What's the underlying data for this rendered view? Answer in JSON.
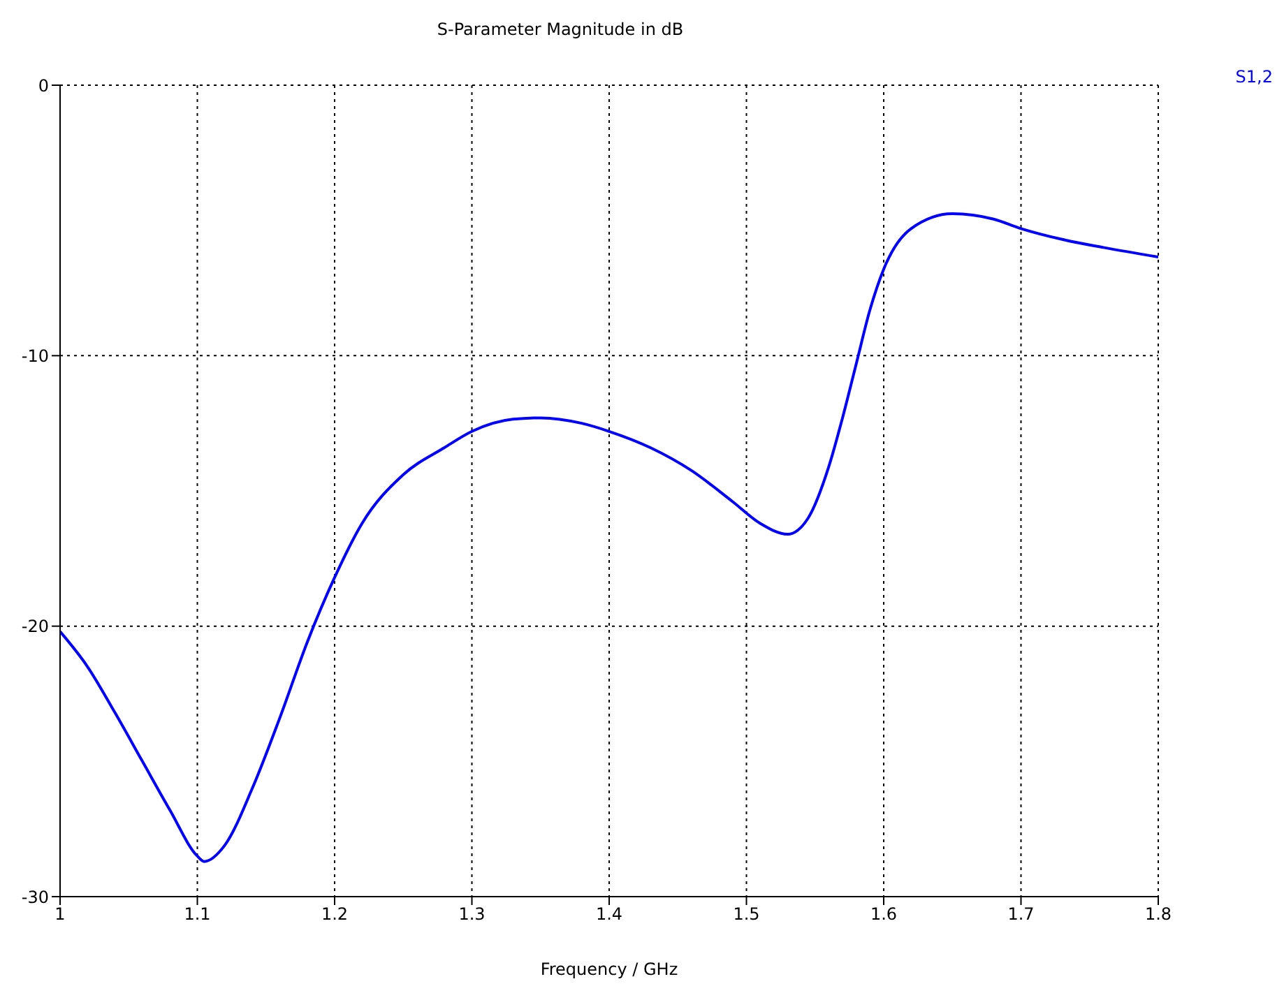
{
  "chart_data": {
    "type": "line",
    "title": "S-Parameter Magnitude in dB",
    "xlabel": "Frequency / GHz",
    "x": [
      1.0,
      1.02,
      1.04,
      1.06,
      1.08,
      1.1,
      1.105,
      1.12,
      1.14,
      1.16,
      1.18,
      1.2,
      1.22,
      1.25,
      1.28,
      1.3,
      1.33,
      1.35,
      1.38,
      1.4,
      1.43,
      1.46,
      1.49,
      1.51,
      1.53,
      1.545,
      1.56,
      1.57,
      1.58,
      1.59,
      1.6,
      1.62,
      1.65,
      1.68,
      1.7,
      1.73,
      1.76,
      1.8
    ],
    "series": [
      {
        "name": "S1,2",
        "color": "#0000ff",
        "values": [
          -20.2,
          -21.5,
          -23.2,
          -25.0,
          -26.8,
          -28.5,
          -28.7,
          -28.1,
          -26.0,
          -23.4,
          -20.6,
          -18.2,
          -16.2,
          -14.4,
          -13.4,
          -12.8,
          -12.35,
          -12.3,
          -12.5,
          -12.8,
          -13.4,
          -14.25,
          -15.4,
          -16.2,
          -16.6,
          -16.0,
          -14.1,
          -12.3,
          -10.3,
          -8.3,
          -6.8,
          -5.3,
          -4.75,
          -4.95,
          -5.3,
          -5.7,
          -6.0,
          -6.35
        ]
      }
    ],
    "xlim": [
      1,
      1.8
    ],
    "xticks": [
      1,
      1.1,
      1.2,
      1.3,
      1.4,
      1.5,
      1.6,
      1.7,
      1.8
    ],
    "ylim": [
      -30,
      0
    ],
    "yticks": [
      -30,
      -20,
      -10,
      0
    ],
    "grid": true,
    "legend": "top right",
    "marker": "none",
    "line_style": "solid"
  }
}
